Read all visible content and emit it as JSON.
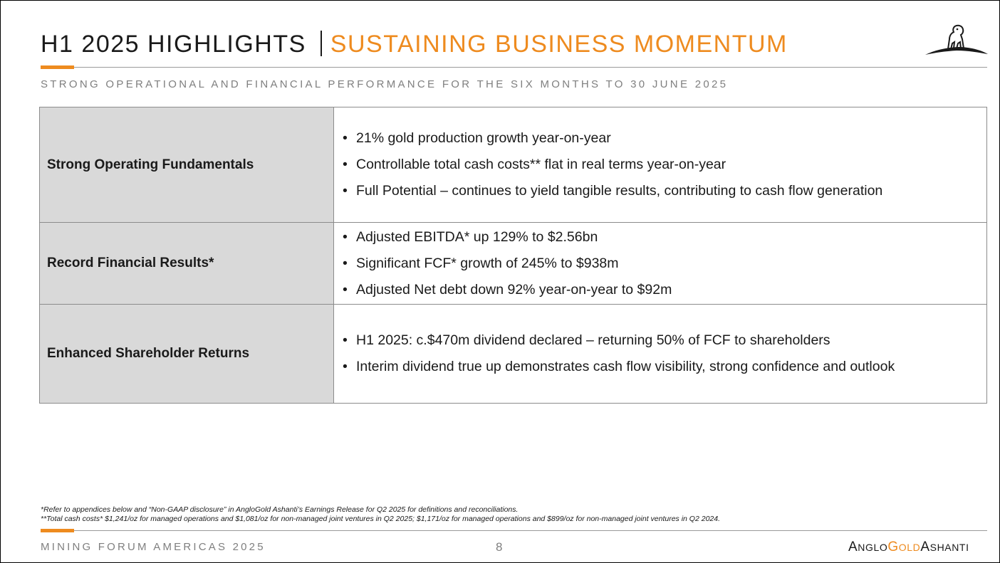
{
  "header": {
    "title_main": "H1 2025 HIGHLIGHTS",
    "title_accent": "SUSTAINING BUSINESS MOMENTUM",
    "subtitle": "STRONG OPERATIONAL AND FINANCIAL PERFORMANCE FOR THE SIX MONTHS TO 30 JUNE 2025",
    "logo_icon": "lion-rock-icon"
  },
  "highlights": [
    {
      "label": "Strong Operating Fundamentals",
      "bullets": [
        "21% gold production growth year-on-year",
        "Controllable total cash costs** flat in real terms year-on-year",
        "Full Potential – continues to yield tangible results, contributing to cash flow generation"
      ]
    },
    {
      "label": "Record Financial Results*",
      "bullets": [
        "Adjusted EBITDA* up 129% to $2.56bn",
        "Significant FCF* growth of 245% to $938m",
        "Adjusted Net debt down 92% year-on-year to $92m"
      ]
    },
    {
      "label": "Enhanced Shareholder Returns",
      "bullets": [
        "H1 2025: c.$470m dividend declared – returning 50% of FCF to shareholders",
        "Interim dividend true up demonstrates cash flow visibility, strong confidence and outlook"
      ]
    }
  ],
  "footnotes": [
    "*Refer to appendices below and “Non-GAAP disclosure” in AngloGold Ashanti’s Earnings Release for Q2 2025 for definitions and reconciliations.",
    "**Total cash costs* $1,241/oz for managed operations and $1,081/oz for non-managed joint ventures in Q2 2025; $1,171/oz for managed operations and $899/oz for non-managed joint ventures in Q2 2024."
  ],
  "footer": {
    "event": "MINING FORUM AMERICAS 2025",
    "page_number": "8",
    "brand_parts": [
      "A",
      "NGLO",
      "G",
      "OLD",
      "A",
      "SHANTI"
    ]
  },
  "colors": {
    "accent": "#ee8b1f",
    "label_cell_bg": "#d9d9d9",
    "subtle_text": "#7f7f7f"
  }
}
